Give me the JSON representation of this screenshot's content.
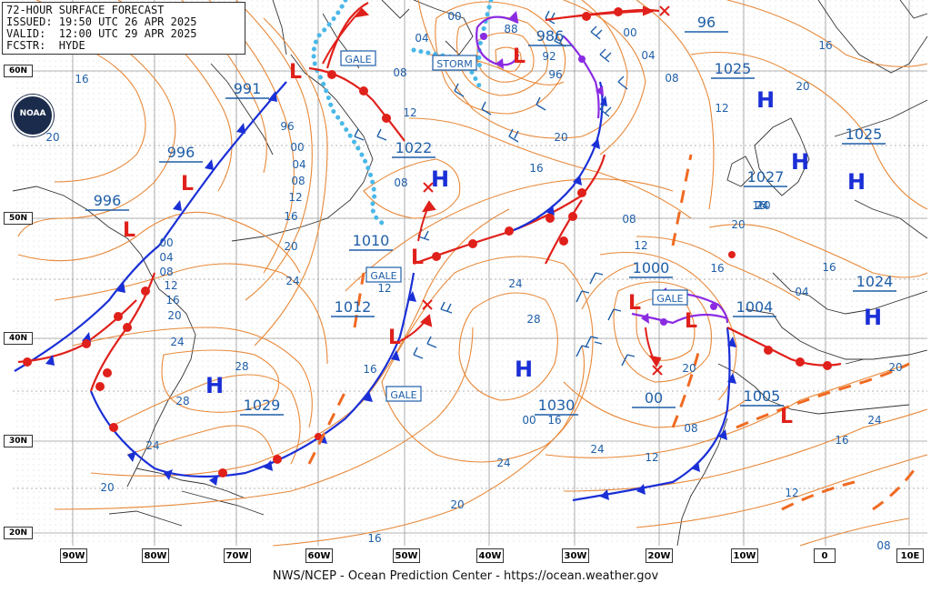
{
  "header": {
    "line1": "72-HOUR SURFACE FORECAST",
    "line2": "ISSUED: 19:50 UTC 26 APR 2025",
    "line3": "VALID:  12:00 UTC 29 APR 2025",
    "line4": "FCSTR:  HYDE"
  },
  "footer": "NWS/NCEP - Ocean Prediction Center - https://ocean.weather.gov",
  "logo_text": "NOAA",
  "lon_labels": [
    "90W",
    "80W",
    "70W",
    "60W",
    "50W",
    "40W",
    "30W",
    "20W",
    "10W",
    "0",
    "10E"
  ],
  "lat_labels": [
    "60N",
    "50N",
    "40N",
    "30N",
    "20N"
  ],
  "colors": {
    "isobar": "#e8893a",
    "label": "#1f5fa8",
    "cold_front": "#1a2fd6",
    "warm_front": "#e0201a",
    "occluded": "#8a2be2",
    "ice_edge": "#49b8e8",
    "land": "#333333"
  },
  "pressure_centers": [
    {
      "id": "h-30w-35n",
      "type": "H",
      "value": "1030"
    },
    {
      "id": "h-75w-37n",
      "type": "H",
      "value": "1029"
    },
    {
      "id": "h-52w-52n",
      "type": "H",
      "value": "1022"
    },
    {
      "id": "h-0-56n",
      "type": "H",
      "value": "1025"
    },
    {
      "id": "h-0-58n",
      "type": "H",
      "value": "1025"
    },
    {
      "id": "h-3e-42n",
      "type": "H",
      "value": "1024"
    },
    {
      "id": "h-17w-55n",
      "type": "H",
      "value": "1027"
    },
    {
      "id": "l-42w-59n",
      "type": "L",
      "value": "986"
    },
    {
      "id": "l-18w-42n",
      "type": "L",
      "value": "1000"
    },
    {
      "id": "l-6w-35n",
      "type": "L",
      "value": "1005"
    },
    {
      "id": "l-65w-59n",
      "type": "L",
      "value": "991"
    },
    {
      "id": "l-80w-53n",
      "type": "L",
      "value": "996"
    },
    {
      "id": "l-85w-48n",
      "type": "L",
      "value": "996"
    },
    {
      "id": "l-52w-46n",
      "type": "L",
      "value": "1010"
    },
    {
      "id": "l-52w-40n",
      "type": "L",
      "value": "1012"
    },
    {
      "id": "l-6w-42n",
      "type": "L",
      "value": "1004"
    }
  ],
  "pressure_labels": [
    "991",
    "996",
    "996",
    "1022",
    "1010",
    "1012",
    "1029",
    "1030",
    "986",
    "1025",
    "1025",
    "1027",
    "1024",
    "1000",
    "1004",
    "1005",
    "00",
    "96"
  ],
  "isobar_values": [
    "16",
    "20",
    "96",
    "00",
    "04",
    "08",
    "12",
    "16",
    "20",
    "24",
    "00",
    "04",
    "08",
    "12",
    "16",
    "20",
    "24",
    "28",
    "28",
    "24",
    "20",
    "16",
    "08",
    "12",
    "16",
    "20",
    "24",
    "28",
    "24",
    "20",
    "16",
    "12",
    "08",
    "04",
    "00",
    "88",
    "92",
    "96",
    "00",
    "04",
    "08",
    "12",
    "16",
    "20",
    "24",
    "20",
    "16",
    "12",
    "20",
    "24",
    "16",
    "12",
    "08",
    "04",
    "16",
    "20",
    "24",
    "16",
    "12",
    "08",
    "00",
    "08",
    "16",
    "20"
  ],
  "warnings": [
    {
      "id": "gale-1",
      "text": "GALE"
    },
    {
      "id": "storm-1",
      "text": "STORM"
    },
    {
      "id": "gale-2",
      "text": "GALE"
    },
    {
      "id": "gale-3",
      "text": "GALE"
    },
    {
      "id": "gale-4",
      "text": "GALE"
    }
  ],
  "labels_text": {
    "l_sym": "L",
    "h_sym": "H",
    "x_sym": "×"
  }
}
